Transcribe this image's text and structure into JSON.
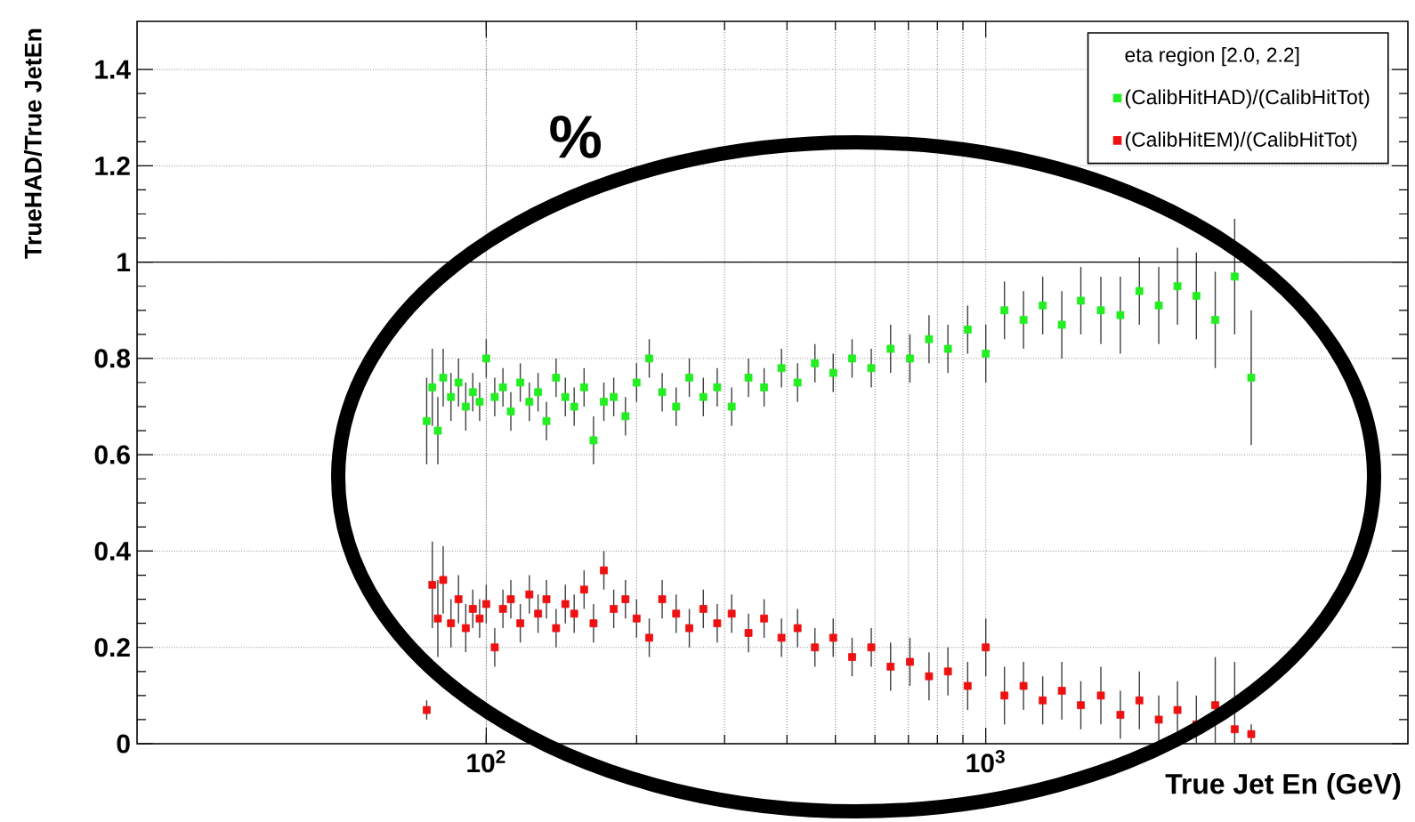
{
  "chart_data": {
    "type": "scatter",
    "xlabel": "True Jet En (GeV)",
    "ylabel": "TrueHAD/True JetEn",
    "legend_title": "eta region [2.0, 2.2]",
    "x": [
      76,
      78,
      80,
      82,
      85,
      88,
      91,
      94,
      97,
      100,
      104,
      108,
      112,
      117,
      122,
      127,
      132,
      138,
      144,
      150,
      157,
      164,
      172,
      180,
      190,
      200,
      212,
      225,
      240,
      255,
      272,
      290,
      310,
      335,
      360,
      390,
      420,
      455,
      495,
      540,
      590,
      645,
      705,
      770,
      840,
      920,
      1000,
      1090,
      1190,
      1300,
      1420,
      1550,
      1700,
      1860,
      2030,
      2220,
      2420,
      2640,
      2880,
      3150,
      3400
    ],
    "series": [
      {
        "name": "(CalibHitHAD)/(CalibHitTot)",
        "color": "#22ee22",
        "values": [
          0.67,
          0.74,
          0.65,
          0.76,
          0.72,
          0.75,
          0.7,
          0.73,
          0.71,
          0.8,
          0.72,
          0.74,
          0.69,
          0.75,
          0.71,
          0.73,
          0.67,
          0.76,
          0.72,
          0.7,
          0.74,
          0.63,
          0.71,
          0.72,
          0.68,
          0.75,
          0.8,
          0.73,
          0.7,
          0.76,
          0.72,
          0.74,
          0.7,
          0.76,
          0.74,
          0.78,
          0.75,
          0.79,
          0.77,
          0.8,
          0.78,
          0.82,
          0.8,
          0.84,
          0.82,
          0.86,
          0.81,
          0.9,
          0.88,
          0.91,
          0.87,
          0.92,
          0.9,
          0.89,
          0.94,
          0.91,
          0.95,
          0.93,
          0.88,
          0.97,
          0.76
        ],
        "errors": [
          0.09,
          0.08,
          0.07,
          0.06,
          0.05,
          0.05,
          0.05,
          0.04,
          0.04,
          0.04,
          0.04,
          0.04,
          0.04,
          0.04,
          0.04,
          0.04,
          0.04,
          0.04,
          0.04,
          0.04,
          0.04,
          0.05,
          0.04,
          0.04,
          0.04,
          0.04,
          0.04,
          0.04,
          0.04,
          0.04,
          0.04,
          0.04,
          0.04,
          0.04,
          0.04,
          0.04,
          0.04,
          0.04,
          0.04,
          0.04,
          0.04,
          0.05,
          0.05,
          0.05,
          0.05,
          0.05,
          0.06,
          0.06,
          0.06,
          0.06,
          0.07,
          0.07,
          0.07,
          0.08,
          0.07,
          0.08,
          0.08,
          0.09,
          0.1,
          0.12,
          0.14
        ]
      },
      {
        "name": "(CalibHitEM)/(CalibHitTot)",
        "color": "#ee1111",
        "values": [
          0.07,
          0.33,
          0.26,
          0.34,
          0.25,
          0.3,
          0.24,
          0.28,
          0.26,
          0.29,
          0.2,
          0.28,
          0.3,
          0.25,
          0.31,
          0.27,
          0.3,
          0.24,
          0.29,
          0.27,
          0.32,
          0.25,
          0.36,
          0.28,
          0.3,
          0.26,
          0.22,
          0.3,
          0.27,
          0.24,
          0.28,
          0.25,
          0.27,
          0.23,
          0.26,
          0.22,
          0.24,
          0.2,
          0.22,
          0.18,
          0.2,
          0.16,
          0.17,
          0.14,
          0.15,
          0.12,
          0.2,
          0.1,
          0.12,
          0.09,
          0.11,
          0.08,
          0.1,
          0.06,
          0.09,
          0.05,
          0.07,
          0.04,
          0.08,
          0.03,
          0.02
        ],
        "errors": [
          0.02,
          0.09,
          0.08,
          0.07,
          0.05,
          0.05,
          0.05,
          0.04,
          0.04,
          0.04,
          0.04,
          0.04,
          0.04,
          0.04,
          0.04,
          0.04,
          0.04,
          0.04,
          0.04,
          0.04,
          0.04,
          0.04,
          0.04,
          0.04,
          0.04,
          0.04,
          0.04,
          0.04,
          0.04,
          0.04,
          0.04,
          0.04,
          0.04,
          0.04,
          0.04,
          0.04,
          0.04,
          0.04,
          0.04,
          0.04,
          0.04,
          0.05,
          0.05,
          0.05,
          0.05,
          0.05,
          0.06,
          0.06,
          0.05,
          0.05,
          0.06,
          0.05,
          0.06,
          0.05,
          0.06,
          0.05,
          0.06,
          0.06,
          0.1,
          0.14,
          0.02
        ]
      }
    ],
    "xlim": [
      20,
      7000
    ],
    "ylim": [
      0,
      1.5
    ],
    "xticks": [
      {
        "value": 100,
        "label": "10$^{2}$"
      },
      {
        "value": 1000,
        "label": "10$^{3}$"
      }
    ],
    "yticks": [
      0,
      0.2,
      0.4,
      0.6,
      0.8,
      1,
      1.2,
      1.4
    ],
    "log": "x",
    "grid": true,
    "legend": "top right",
    "marker": "square",
    "ref_lines": [
      {
        "axis": "y",
        "value": 1,
        "color": "#000000",
        "line_style": "solid"
      }
    ],
    "annotations": [
      "%"
    ]
  }
}
